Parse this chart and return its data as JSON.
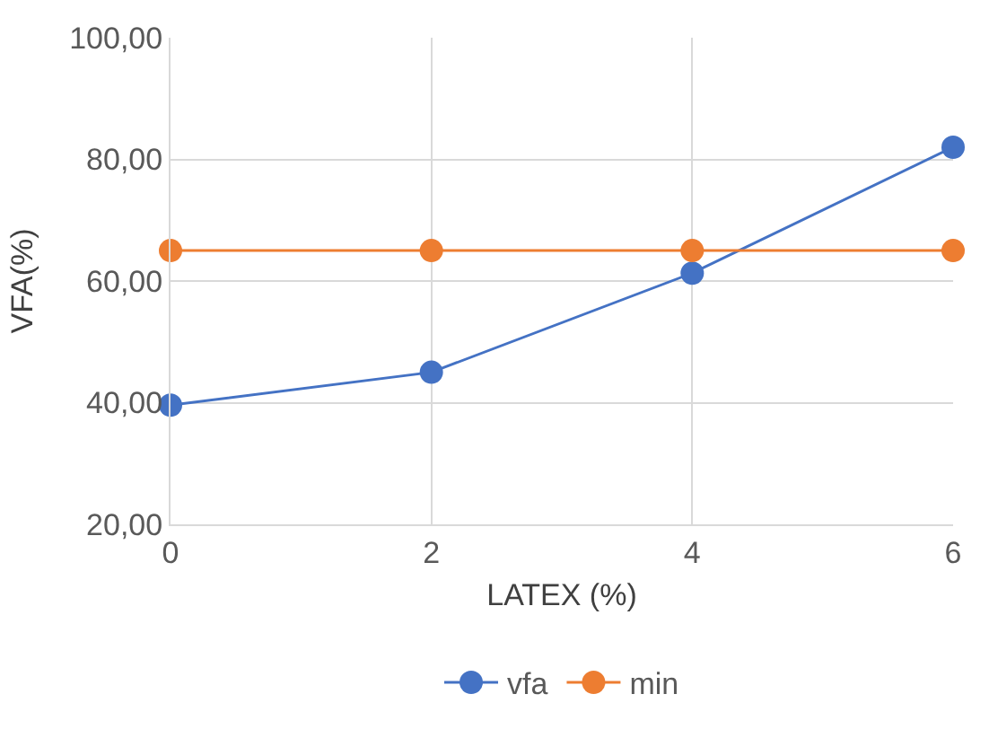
{
  "chart_data": {
    "type": "line",
    "xlabel": "LATEX (%)",
    "ylabel": "VFA(%)",
    "x": [
      0,
      2,
      4,
      6
    ],
    "series": [
      {
        "name": "vfa",
        "color": "#4472c4",
        "values": [
          39.6,
          45.0,
          61.3,
          82.0
        ]
      },
      {
        "name": "min",
        "color": "#ed7d31",
        "values": [
          65,
          65,
          65,
          65
        ]
      }
    ],
    "xlim": [
      0,
      6
    ],
    "xticks": [
      0,
      2,
      4,
      6
    ],
    "ylim": [
      20,
      100
    ],
    "yticks": [
      {
        "value": 20,
        "label": "20,00"
      },
      {
        "value": 40,
        "label": "40,00"
      },
      {
        "value": 60,
        "label": "60,00"
      },
      {
        "value": 80,
        "label": "80,00"
      },
      {
        "value": 100,
        "label": "100,00"
      }
    ],
    "grid": true,
    "legend": "bottom",
    "marker": "circle",
    "line_style": "solid"
  }
}
